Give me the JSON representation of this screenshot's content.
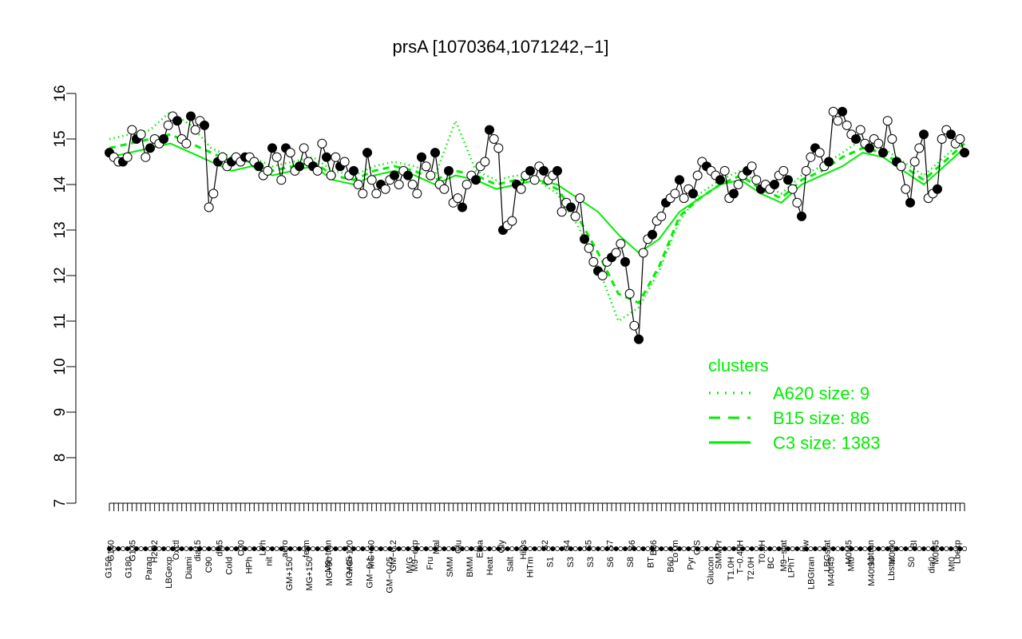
{
  "chart_data": {
    "type": "line",
    "title": "prsA [1070364,1071242,−1]",
    "xlabel": "",
    "ylabel": "",
    "ylim": [
      7,
      16
    ],
    "yticks": [
      7,
      8,
      9,
      10,
      11,
      12,
      13,
      14,
      15,
      16
    ],
    "colors": {
      "axis": "#000000",
      "points": "#000000",
      "clusters": "#00ee00"
    },
    "xtick_labels_upper": [
      "G150",
      "G135",
      "H2O2",
      "Oxctl",
      "dia15",
      "dia5",
      "C30",
      "LPh",
      "aero",
      "ferm",
      "M9−tran",
      "MG+120",
      "MG+60",
      "GM−0.2",
      "M9−exp",
      "Mal",
      "Glu",
      "Etha",
      "Gly",
      "HiOs",
      "S2",
      "S4",
      "S5",
      "S7",
      "S6",
      "B36",
      "LoTm",
      "G/S",
      "SMMPr",
      "T−0.40H",
      "T0.0H",
      "M9−stat",
      "Sw",
      "LBGstat",
      "M0t45",
      "Lbtran",
      "M0t90",
      "BI",
      "M0t45",
      "Lbexp"
    ],
    "xtick_labels_lower": [
      "G150",
      "G180",
      "Paraq",
      "LBGexp",
      "Diami",
      "C90",
      "Cold",
      "HPh",
      "nit",
      "GM+150",
      "MG+150",
      "MG+90",
      "MG+45",
      "GM−0.1",
      "GM−0.05",
      "M/G",
      "Fru",
      "SMM",
      "BMM",
      "Heat",
      "Salt",
      "HiTm",
      "S1",
      "S3",
      "S3",
      "S6",
      "S8",
      "BT",
      "B60",
      "Pyr",
      "Glucon",
      "T1.0H",
      "T2.0H",
      "BC",
      "LPhT",
      "LBGtran",
      "M40t45",
      "Mt0",
      "M40t90",
      "Lbstat",
      "S0",
      "dia0",
      "Mt0"
    ],
    "series": [
      {
        "points_y": [
          14.7,
          14.6,
          14.5,
          14.5,
          14.6,
          15.2,
          15.0,
          15.1,
          14.6,
          14.8,
          15.0,
          14.9,
          15.0,
          15.3,
          15.5,
          15.4,
          15.0,
          14.9,
          15.5,
          15.2,
          15.4,
          15.3,
          13.5,
          13.8,
          14.5,
          14.6,
          14.4,
          14.5,
          14.6,
          14.5,
          14.6,
          14.6,
          14.5,
          14.4,
          14.2,
          14.3,
          14.8,
          14.6,
          14.1,
          14.8,
          14.7,
          14.3,
          14.4,
          14.8,
          14.5,
          14.4,
          14.3,
          14.9,
          14.6,
          14.2,
          14.6,
          14.4,
          14.5,
          14.2,
          14.3,
          14.0,
          13.8,
          14.7,
          14.1,
          13.8,
          14.0,
          13.9,
          14.1,
          14.2,
          14.0,
          14.3,
          14.2,
          14.0,
          13.8,
          14.6,
          14.4,
          14.2,
          14.7,
          14.0,
          13.9,
          14.3,
          13.6,
          13.7,
          13.5,
          14.0,
          14.2,
          14.1,
          14.4,
          14.5,
          15.2,
          15.0,
          14.8,
          13.0,
          13.1,
          13.2,
          14.0,
          13.9,
          14.2,
          14.3,
          14.1,
          14.4,
          14.3,
          14.1,
          14.2,
          14.3,
          13.4,
          13.6,
          13.5,
          13.3,
          13.7,
          12.8,
          12.6,
          12.3,
          12.1,
          12.0,
          12.3,
          12.4,
          12.5,
          12.7,
          12.3,
          11.6,
          10.9,
          10.6,
          12.5,
          12.8,
          12.9,
          13.2,
          13.3,
          13.6,
          13.7,
          13.8,
          14.1,
          13.7,
          13.9,
          13.8,
          14.2,
          14.5,
          14.4,
          14.3,
          14.2,
          14.1,
          14.3,
          13.7,
          13.8,
          14.0,
          14.2,
          14.3,
          14.4,
          14.1,
          13.9,
          14.0,
          13.9,
          14.0,
          14.2,
          14.3,
          14.1,
          13.9,
          13.6,
          13.3,
          14.3,
          14.6,
          14.8,
          14.7,
          14.4,
          14.5,
          15.6,
          15.4,
          15.6,
          15.3,
          15.1,
          15.0,
          15.2,
          14.9,
          14.8,
          15.0,
          14.9,
          14.7,
          15.4,
          15.0,
          14.5,
          14.4,
          13.9,
          13.6,
          14.5,
          14.8,
          15.1,
          13.7,
          13.8,
          13.9,
          15.0,
          15.2,
          15.1,
          14.9,
          15.0,
          14.7
        ]
      }
    ],
    "clusters_legend": {
      "title": "clusters",
      "entries": [
        {
          "label": "A620 size: 9",
          "style": "dotted"
        },
        {
          "label": "B15 size: 86",
          "style": "dashed"
        },
        {
          "label": "C3 size: 1383",
          "style": "solid"
        }
      ]
    },
    "cluster_curves": {
      "C3": [
        14.6,
        14.7,
        14.8,
        14.9,
        14.7,
        14.5,
        14.3,
        14.4,
        14.2,
        14.3,
        14.4,
        14.1,
        14.0,
        14.2,
        14.3,
        14.2,
        14.0,
        14.2,
        14.1,
        13.9,
        14.0,
        14.1,
        14.0,
        13.7,
        13.4,
        12.9,
        12.5,
        12.8,
        13.4,
        13.7,
        14.0,
        14.1,
        13.8,
        13.6,
        14.0,
        14.2,
        14.4,
        14.7,
        14.6,
        14.3,
        14.0,
        14.4,
        14.8
      ],
      "B15": [
        14.8,
        14.9,
        15.0,
        15.1,
        14.9,
        14.7,
        14.5,
        14.5,
        14.3,
        14.4,
        14.5,
        14.2,
        14.1,
        14.3,
        14.4,
        14.3,
        14.1,
        14.3,
        14.2,
        14.0,
        14.1,
        14.1,
        13.9,
        13.3,
        12.5,
        11.6,
        11.4,
        12.2,
        13.3,
        13.7,
        14.0,
        14.2,
        13.9,
        13.7,
        14.1,
        14.3,
        14.6,
        14.8,
        14.7,
        14.4,
        14.1,
        14.5,
        14.9
      ],
      "A620": [
        15.0,
        15.1,
        15.2,
        15.6,
        15.3,
        14.8,
        14.6,
        14.6,
        14.4,
        14.5,
        14.6,
        14.3,
        14.2,
        14.4,
        14.5,
        14.4,
        14.2,
        15.4,
        14.3,
        14.1,
        14.2,
        14.1,
        13.8,
        13.1,
        12.2,
        11.0,
        11.3,
        12.1,
        13.2,
        13.8,
        14.1,
        14.3,
        14.0,
        13.8,
        14.2,
        14.4,
        14.7,
        15.0,
        14.8,
        14.5,
        14.2,
        14.6,
        15.0
      ]
    }
  }
}
